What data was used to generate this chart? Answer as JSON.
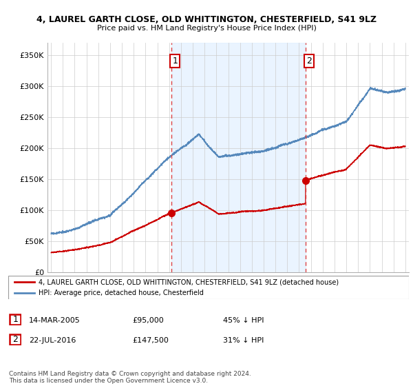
{
  "title": "4, LAUREL GARTH CLOSE, OLD WHITTINGTON, CHESTERFIELD, S41 9LZ",
  "subtitle": "Price paid vs. HM Land Registry's House Price Index (HPI)",
  "ylabel_ticks": [
    "£0",
    "£50K",
    "£100K",
    "£150K",
    "£200K",
    "£250K",
    "£300K",
    "£350K"
  ],
  "ytick_vals": [
    0,
    50000,
    100000,
    150000,
    200000,
    250000,
    300000,
    350000
  ],
  "ylim": [
    0,
    370000
  ],
  "xlim_start": 1994.7,
  "xlim_end": 2025.3,
  "purchase1_x": 2005.2,
  "purchase1_y": 95000,
  "purchase1_label": "1",
  "purchase2_x": 2016.55,
  "purchase2_y": 147500,
  "purchase2_label": "2",
  "line_color_property": "#cc0000",
  "line_color_hpi": "#5588bb",
  "fill_color": "#ddeeff",
  "fill_alpha": 0.6,
  "marker_box_color": "#cc0000",
  "dashed_line_color": "#dd4444",
  "legend_text1": "4, LAUREL GARTH CLOSE, OLD WHITTINGTON, CHESTERFIELD, S41 9LZ (detached house)",
  "legend_text2": "HPI: Average price, detached house, Chesterfield",
  "table_row1": [
    "1",
    "14-MAR-2005",
    "£95,000",
    "45% ↓ HPI"
  ],
  "table_row2": [
    "2",
    "22-JUL-2016",
    "£147,500",
    "31% ↓ HPI"
  ],
  "footer": "Contains HM Land Registry data © Crown copyright and database right 2024.\nThis data is licensed under the Open Government Licence v3.0.",
  "background_color": "#ffffff",
  "grid_color": "#cccccc"
}
